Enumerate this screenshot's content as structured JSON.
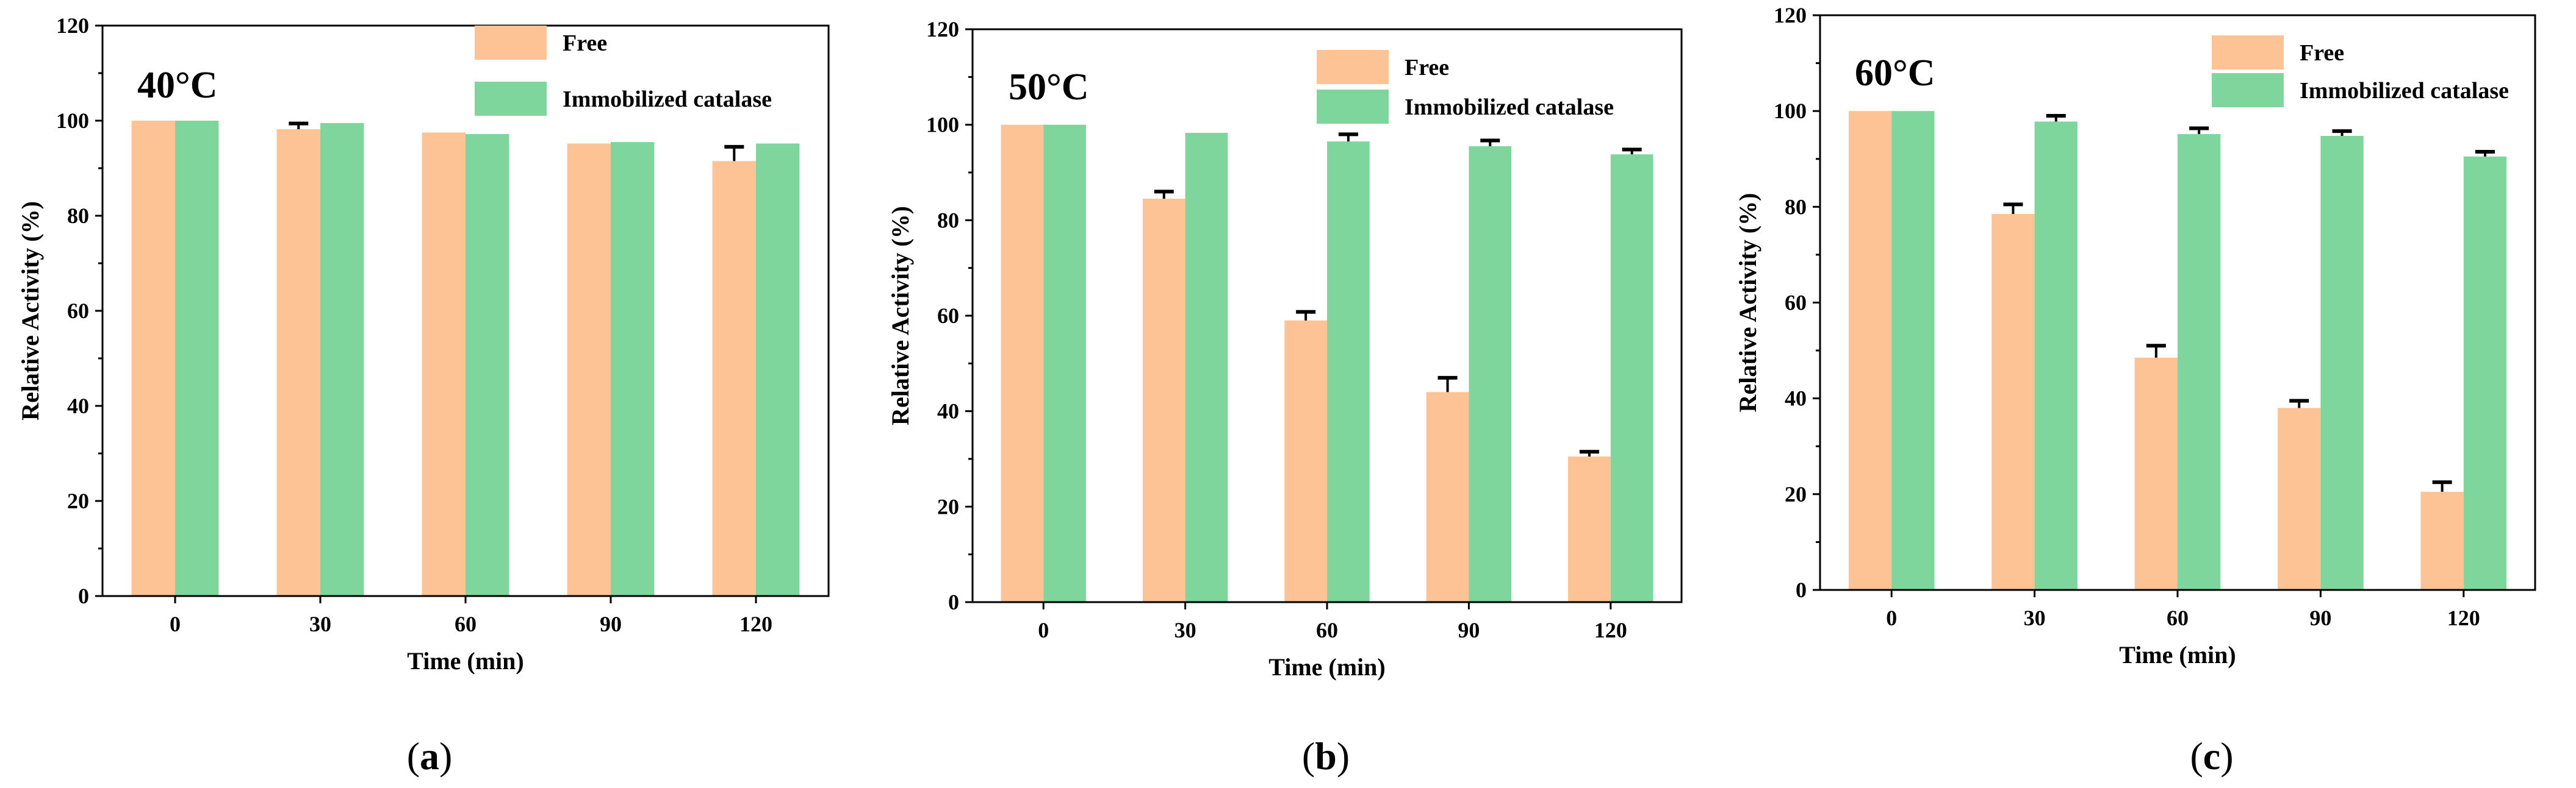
{
  "figure": {
    "colors": {
      "free": "#FDC395",
      "immobilized": "#7FD69C",
      "axis": "#000000",
      "error_bar": "#000000"
    }
  },
  "chart_data": [
    {
      "type": "bar",
      "panel_label": "a",
      "temperature_label": "40°C",
      "xlabel": "Time (min)",
      "ylabel": "Relative Activity (%)",
      "ylim": [
        0,
        120
      ],
      "yticks": [
        0,
        20,
        40,
        60,
        80,
        100,
        120
      ],
      "categories": [
        "0",
        "30",
        "60",
        "90",
        "120"
      ],
      "legend_position": "top-right",
      "series": [
        {
          "name": "Free",
          "values": [
            100,
            98.2,
            97.5,
            95.2,
            91.5
          ],
          "errors": [
            0,
            1.2,
            0,
            0,
            3.0
          ]
        },
        {
          "name": "Immobilized catalase",
          "values": [
            100,
            99.5,
            97.2,
            95.5,
            95.2
          ],
          "errors": [
            0,
            0,
            0,
            0,
            0
          ]
        }
      ]
    },
    {
      "type": "bar",
      "panel_label": "b",
      "temperature_label": "50°C",
      "xlabel": "Time (min)",
      "ylabel": "Relative Activity (%)",
      "ylim": [
        0,
        120
      ],
      "yticks": [
        0,
        20,
        40,
        60,
        80,
        100,
        120
      ],
      "categories": [
        "0",
        "30",
        "60",
        "90",
        "120"
      ],
      "legend_position": "top-right",
      "series": [
        {
          "name": "Free",
          "values": [
            100,
            84.5,
            59,
            44,
            30.5
          ],
          "errors": [
            0,
            1.5,
            1.8,
            3.0,
            1.0
          ]
        },
        {
          "name": "Immobilized catalase",
          "values": [
            100,
            98.3,
            96.5,
            95.5,
            93.8
          ],
          "errors": [
            0,
            0,
            1.5,
            1.2,
            1.0
          ]
        }
      ]
    },
    {
      "type": "bar",
      "panel_label": "c",
      "temperature_label": "60°C",
      "xlabel": "Time (min)",
      "ylabel": "Relative Activity (%)",
      "ylim": [
        0,
        120
      ],
      "yticks": [
        0,
        20,
        40,
        60,
        80,
        100,
        120
      ],
      "categories": [
        "0",
        "30",
        "60",
        "90",
        "120"
      ],
      "legend_position": "top-right",
      "series": [
        {
          "name": "Free",
          "values": [
            100,
            78.5,
            48.5,
            38,
            20.5
          ],
          "errors": [
            0,
            2.0,
            2.5,
            1.5,
            2.0
          ]
        },
        {
          "name": "Immobilized catalase",
          "values": [
            100,
            97.8,
            95.2,
            94.8,
            90.5
          ],
          "errors": [
            0,
            1.2,
            1.2,
            1.0,
            1.0
          ]
        }
      ]
    }
  ]
}
